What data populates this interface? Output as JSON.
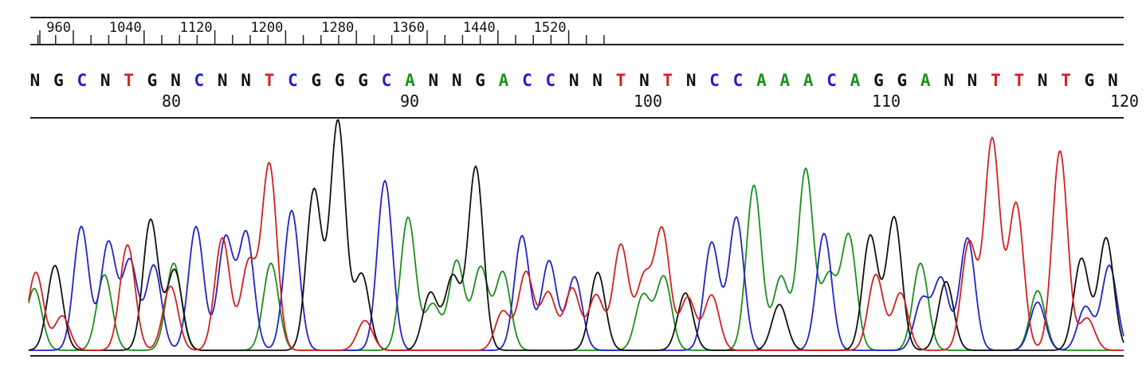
{
  "chart_data": {
    "type": "line",
    "title": "",
    "xlabel": "",
    "ylabel": "",
    "scale_ticks": [
      960,
      1040,
      1120,
      1200,
      1280,
      1360,
      1440,
      1520
    ],
    "base_calls": [
      "N",
      "G",
      "C",
      "N",
      "T",
      "G",
      "N",
      "C",
      "N",
      "N",
      "T",
      "C",
      "G",
      "G",
      "G",
      "C",
      "A",
      "N",
      "N",
      "G",
      "A",
      "C",
      "C",
      "N",
      "N",
      "T",
      "N",
      "T",
      "N",
      "C",
      "C",
      "A",
      "A",
      "A",
      "C",
      "A",
      "G",
      "G",
      "A",
      "N",
      "N",
      "T",
      "T",
      "N",
      "T",
      "G",
      "N"
    ],
    "position_labels": [
      80,
      90,
      100,
      110,
      120
    ],
    "base_colors": {
      "A": "#1a8f1a",
      "C": "#2222cc",
      "G": "#111111",
      "T": "#d42020",
      "N": "#111111"
    },
    "series": [
      {
        "name": "A",
        "color": "#1a8f1a",
        "peaks": [
          [
            43,
            0.27
          ],
          [
            131,
            0.33
          ],
          [
            218,
            0.38
          ],
          [
            340,
            0.38
          ],
          [
            512,
            0.58
          ],
          [
            543,
            0.2
          ],
          [
            573,
            0.39
          ],
          [
            603,
            0.36
          ],
          [
            631,
            0.34
          ],
          [
            807,
            0.24
          ],
          [
            833,
            0.32
          ],
          [
            946,
            0.72
          ],
          [
            980,
            0.32
          ],
          [
            1011,
            0.79
          ],
          [
            1040,
            0.32
          ],
          [
            1065,
            0.5
          ],
          [
            1155,
            0.38
          ],
          [
            1302,
            0.26
          ]
        ]
      },
      {
        "name": "C",
        "color": "#2222cc",
        "peaks": [
          [
            102,
            0.54
          ],
          [
            136,
            0.47
          ],
          [
            163,
            0.39
          ],
          [
            193,
            0.37
          ],
          [
            246,
            0.54
          ],
          [
            283,
            0.49
          ],
          [
            309,
            0.51
          ],
          [
            366,
            0.61
          ],
          [
            483,
            0.74
          ],
          [
            655,
            0.5
          ],
          [
            689,
            0.39
          ],
          [
            721,
            0.32
          ],
          [
            893,
            0.47
          ],
          [
            924,
            0.58
          ],
          [
            1034,
            0.51
          ],
          [
            1157,
            0.22
          ],
          [
            1181,
            0.31
          ],
          [
            1214,
            0.49
          ],
          [
            1302,
            0.21
          ],
          [
            1362,
            0.19
          ],
          [
            1392,
            0.37
          ]
        ]
      },
      {
        "name": "G",
        "color": "#111111",
        "peaks": [
          [
            69,
            0.37
          ],
          [
            189,
            0.57
          ],
          [
            219,
            0.35
          ],
          [
            394,
            0.7
          ],
          [
            424,
            1.0
          ],
          [
            454,
            0.33
          ],
          [
            540,
            0.25
          ],
          [
            568,
            0.32
          ],
          [
            597,
            0.8
          ],
          [
            750,
            0.34
          ],
          [
            860,
            0.25
          ],
          [
            978,
            0.2
          ],
          [
            1092,
            0.5
          ],
          [
            1122,
            0.58
          ],
          [
            1187,
            0.3
          ],
          [
            1357,
            0.4
          ],
          [
            1388,
            0.49
          ]
        ]
      },
      {
        "name": "T",
        "color": "#d42020",
        "peaks": [
          [
            45,
            0.34
          ],
          [
            78,
            0.15
          ],
          [
            160,
            0.46
          ],
          [
            214,
            0.28
          ],
          [
            279,
            0.49
          ],
          [
            312,
            0.38
          ],
          [
            338,
            0.81
          ],
          [
            458,
            0.13
          ],
          [
            631,
            0.17
          ],
          [
            660,
            0.34
          ],
          [
            688,
            0.25
          ],
          [
            718,
            0.27
          ],
          [
            748,
            0.24
          ],
          [
            779,
            0.46
          ],
          [
            808,
            0.31
          ],
          [
            831,
            0.52
          ],
          [
            863,
            0.23
          ],
          [
            893,
            0.24
          ],
          [
            1099,
            0.33
          ],
          [
            1130,
            0.25
          ],
          [
            1216,
            0.47
          ],
          [
            1245,
            0.92
          ],
          [
            1275,
            0.64
          ],
          [
            1330,
            0.87
          ],
          [
            1364,
            0.14
          ]
        ]
      }
    ]
  }
}
